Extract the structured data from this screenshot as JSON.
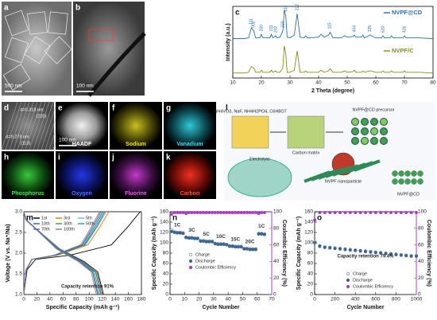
{
  "image_panels": [
    {
      "letter": "a",
      "scale_bar": "500 nm"
    },
    {
      "letter": "b",
      "scale_bar": "100 nm"
    },
    {
      "letter": "d",
      "annotations": [
        "d=0.318 nm",
        "(220)",
        "d=0.273 nm",
        "(113)"
      ]
    },
    {
      "letter": "e",
      "label": "HAADF",
      "scale_bar": "100 nm"
    },
    {
      "letter": "f",
      "label": "Sodium"
    },
    {
      "letter": "g",
      "label": "Vanadium"
    },
    {
      "letter": "h",
      "label": "Phosphorus"
    },
    {
      "letter": "i",
      "label": "Oxygen"
    },
    {
      "letter": "j",
      "label": "Fluorine"
    },
    {
      "letter": "k",
      "label": "Carbon"
    },
    {
      "letter": "l",
      "annotations": [
        "NH4VO3, NaF, NH4H2PO4, C6H8O7",
        "Carbon matrix",
        "NVPF@CD precursor",
        "Electrolyte",
        "NVPF nanoparticle",
        "NVPF@CD"
      ]
    }
  ],
  "chart_data": [
    {
      "type": "line",
      "letter": "c",
      "xlabel": "2 Theta (degree)",
      "ylabel": "Intensity (a.u.)",
      "xlim": [
        10,
        80
      ],
      "xticks": [
        10,
        20,
        30,
        40,
        50,
        60,
        70,
        80
      ],
      "ylim": [
        0,
        100
      ],
      "legend": "right",
      "x": [
        10,
        14,
        15.5,
        16.5,
        17.3,
        18,
        19.5,
        20,
        20.5,
        23,
        23.5,
        24,
        25,
        25.5,
        26.5,
        27.5,
        28,
        28.5,
        29,
        30,
        31.5,
        32.5,
        33.5,
        35,
        35.5,
        36,
        40,
        40.8,
        42,
        43.5,
        44,
        45,
        48,
        49,
        50,
        52,
        52.5,
        53,
        55,
        55.5,
        56,
        58,
        60,
        62,
        62.5,
        63,
        65,
        65.5,
        66,
        69.5,
        70,
        70.5,
        75,
        80
      ],
      "series": [
        {
          "name": "NVPF@CD",
          "color": "#2a6fa8",
          "values": [
            55,
            55,
            56,
            70,
            66,
            56,
            56,
            61,
            56,
            56,
            61,
            56,
            59,
            56,
            57,
            66,
            95,
            88,
            57,
            56,
            60,
            90,
            57,
            56,
            59,
            56,
            57,
            61,
            57,
            60,
            64,
            56,
            56,
            59,
            57,
            58,
            60,
            57,
            57,
            60,
            56,
            60,
            56,
            56,
            59,
            56,
            56,
            59,
            56,
            56,
            59,
            56,
            56,
            55
          ]
        },
        {
          "name": "NVPF/C",
          "color": "#8a8a1a",
          "values": [
            7,
            7,
            8,
            16,
            14,
            8,
            8,
            11,
            8,
            8,
            11,
            8,
            10,
            8,
            8,
            14,
            45,
            34,
            8,
            8,
            11,
            38,
            8,
            8,
            10,
            8,
            8,
            11,
            8,
            10,
            13,
            8,
            8,
            10,
            8,
            9,
            11,
            8,
            8,
            10,
            8,
            10,
            8,
            8,
            10,
            8,
            8,
            10,
            8,
            8,
            10,
            8,
            8,
            7
          ]
        }
      ],
      "peak_labels": [
        {
          "x": 16.5,
          "label": "111"
        },
        {
          "x": 17.3,
          "label": "002"
        },
        {
          "x": 20,
          "label": "200"
        },
        {
          "x": 23.5,
          "label": "211"
        },
        {
          "x": 25,
          "label": "202"
        },
        {
          "x": 27.5,
          "label": "220"
        },
        {
          "x": 28.5,
          "label": "113"
        },
        {
          "x": 32.5,
          "label": "222"
        },
        {
          "x": 44,
          "label": "115"
        },
        {
          "x": 52.5,
          "label": "404"
        },
        {
          "x": 58,
          "label": "335"
        },
        {
          "x": 62.5,
          "label": "620"
        },
        {
          "x": 70,
          "label": "426"
        }
      ]
    },
    {
      "type": "line",
      "letter": "m",
      "xlabel": "Specific Capacity (mAh g⁻¹)",
      "ylabel": "Voltage (V vs. Na⁺/Na)",
      "xlim": [
        0,
        180
      ],
      "xticks": [
        0,
        20,
        40,
        60,
        80,
        100,
        120,
        140,
        160,
        180
      ],
      "ylim": [
        1,
        3
      ],
      "yticks": [
        {
          "value": 1,
          "label": "1.0"
        },
        1.5,
        {
          "value": 2,
          "label": "2.0"
        },
        2.5,
        {
          "value": 3,
          "label": "3.0"
        }
      ],
      "legend": "upper left",
      "annotation": "Capacity retention 91%",
      "series": [
        {
          "name": "1st",
          "color": "#000000",
          "x": [
            0,
            5,
            18,
            71,
            134,
            160,
            178,
            null,
            0,
            4,
            18,
            55,
            92,
            113,
            122
          ],
          "values": [
            1.0,
            1.6,
            1.85,
            1.95,
            2.2,
            2.65,
            3.0,
            null,
            3.0,
            2.8,
            2.6,
            2.1,
            1.8,
            1.55,
            1.0
          ]
        },
        {
          "name": "3rd",
          "color": "#e07b00",
          "x": [
            0,
            4,
            13,
            52,
            98,
            117,
            130,
            null,
            0,
            4,
            18,
            54,
            90,
            112,
            120
          ],
          "values": [
            1.0,
            1.6,
            1.85,
            1.95,
            2.2,
            2.65,
            3.0,
            null,
            3.0,
            2.8,
            2.6,
            2.1,
            1.8,
            1.55,
            1.0
          ]
        },
        {
          "name": "5th",
          "color": "#6fb7e0",
          "x": [
            0,
            4,
            13,
            50,
            95,
            113,
            126,
            null,
            0,
            4,
            18,
            54,
            89,
            111,
            119
          ],
          "values": [
            1.0,
            1.6,
            1.85,
            1.95,
            2.2,
            2.65,
            3.0,
            null,
            3.0,
            2.8,
            2.6,
            2.1,
            1.8,
            1.55,
            1.0
          ]
        },
        {
          "name": "10th",
          "color": "#2f5fbf",
          "x": [
            0,
            4,
            12,
            50,
            93,
            112,
            124,
            null,
            0,
            4,
            18,
            53,
            89,
            110,
            118
          ],
          "values": [
            1.0,
            1.6,
            1.85,
            1.95,
            2.2,
            2.65,
            3.0,
            null,
            3.0,
            2.8,
            2.6,
            2.1,
            1.8,
            1.55,
            1.0
          ]
        },
        {
          "name": "30th",
          "color": "#2e9e3e",
          "x": [
            0,
            4,
            12,
            49,
            92,
            110,
            122,
            null,
            0,
            3,
            17,
            52,
            87,
            108,
            116
          ],
          "values": [
            1.0,
            1.6,
            1.85,
            1.95,
            2.2,
            2.65,
            3.0,
            null,
            3.0,
            2.8,
            2.6,
            2.1,
            1.8,
            1.55,
            1.0
          ]
        },
        {
          "name": "50th",
          "color": "#1a9a9a",
          "x": [
            0,
            4,
            12,
            48,
            90,
            108,
            120,
            null,
            0,
            3,
            17,
            51,
            86,
            106,
            114
          ],
          "values": [
            1.0,
            1.6,
            1.85,
            1.95,
            2.2,
            2.65,
            3.0,
            null,
            3.0,
            2.8,
            2.6,
            2.1,
            1.8,
            1.55,
            1.0
          ]
        },
        {
          "name": "70th",
          "color": "#7a4fbf",
          "x": [
            0,
            4,
            12,
            47,
            89,
            106,
            118,
            null,
            0,
            3,
            17,
            51,
            85,
            105,
            113
          ],
          "values": [
            1.0,
            1.6,
            1.85,
            1.95,
            2.2,
            2.65,
            3.0,
            null,
            3.0,
            2.8,
            2.6,
            2.1,
            1.8,
            1.55,
            1.0
          ]
        },
        {
          "name": "100th",
          "color": "#808080",
          "x": [
            0,
            3,
            12,
            46,
            87,
            104,
            116,
            null,
            0,
            3,
            17,
            50,
            83,
            103,
            111
          ],
          "values": [
            1.0,
            1.6,
            1.85,
            1.95,
            2.2,
            2.65,
            3.0,
            null,
            3.0,
            2.8,
            2.6,
            2.1,
            1.8,
            1.55,
            1.0
          ]
        }
      ]
    },
    {
      "type": "scatter",
      "letter": "n",
      "xlabel": "Cycle Number",
      "ylabel": "Specific Capacity (mAh g⁻¹)",
      "y2label": "Coulombic Efficiency (%)",
      "xlim": [
        0,
        70
      ],
      "xticks": [
        0,
        10,
        20,
        30,
        40,
        50,
        60,
        70
      ],
      "ylim": [
        0,
        160
      ],
      "yticks": [
        0,
        20,
        40,
        60,
        80,
        100,
        120,
        140,
        160
      ],
      "y2lim": [
        0,
        100
      ],
      "y2ticks": [
        0,
        20,
        40,
        60,
        80,
        100
      ],
      "y2color": "#a63fc9",
      "legend": "center left",
      "rate_labels": [
        "1C",
        "3C",
        "5C",
        "10C",
        "15C",
        "20C",
        "1C"
      ],
      "x": [
        1,
        3,
        5,
        7,
        9,
        11,
        13,
        15,
        17,
        19,
        21,
        23,
        25,
        27,
        29,
        31,
        33,
        35,
        37,
        39,
        41,
        43,
        45,
        47,
        49,
        51,
        53,
        55,
        57,
        59,
        61,
        63,
        65
      ],
      "series": [
        {
          "name": "Charge",
          "color": "#4a7aa8",
          "marker": "open-circle",
          "values": [
            125,
            121,
            120,
            120,
            119,
            111,
            110,
            110,
            109,
            109,
            104,
            104,
            103,
            103,
            103,
            99,
            98,
            98,
            98,
            97,
            94,
            94,
            93,
            93,
            93,
            89,
            89,
            88,
            88,
            88,
            118,
            118,
            117
          ]
        },
        {
          "name": "Discharge",
          "color": "#3e6590",
          "marker": "circle",
          "values": [
            122,
            120,
            119,
            119,
            118,
            110,
            109,
            109,
            108,
            108,
            103,
            103,
            102,
            102,
            102,
            98,
            97,
            97,
            97,
            96,
            93,
            93,
            92,
            92,
            92,
            88,
            88,
            87,
            87,
            87,
            117,
            117,
            116
          ]
        },
        {
          "name": "Coulombic Efficiency",
          "color": "#a63fc9",
          "marker": "circle",
          "axis": "y2",
          "values": [
            97,
            99,
            99,
            99,
            99,
            98,
            99,
            99,
            99,
            99,
            99,
            99,
            99,
            99,
            99,
            99,
            99,
            99,
            99,
            99,
            99,
            99,
            99,
            99,
            99,
            99,
            99,
            99,
            99,
            99,
            98,
            99,
            99
          ]
        }
      ]
    },
    {
      "type": "scatter",
      "letter": "o",
      "xlabel": "Cycle Number",
      "ylabel": "Specific Capacity (mAh g⁻¹)",
      "y2label": "Coulombic Efficiency (%)",
      "xlim": [
        0,
        1000
      ],
      "xticks": [
        0,
        200,
        400,
        600,
        800,
        1000
      ],
      "ylim": [
        0,
        160
      ],
      "yticks": [
        0,
        20,
        40,
        60,
        80,
        100,
        120,
        140,
        160
      ],
      "y2lim": [
        0,
        100
      ],
      "y2ticks": [
        0,
        20,
        40,
        60,
        80,
        100
      ],
      "y2color": "#a63fc9",
      "legend": "lower center",
      "annotation": "Capacity retention 79.4%",
      "x": [
        1,
        50,
        100,
        150,
        200,
        250,
        300,
        350,
        400,
        450,
        500,
        550,
        600,
        650,
        700,
        750,
        800,
        850,
        900,
        950,
        1000
      ],
      "series": [
        {
          "name": "Charge",
          "color": "#4a7aa8",
          "marker": "open-circle",
          "values": [
            102,
            94,
            92,
            91,
            90,
            89,
            88,
            87,
            86,
            85,
            84,
            83,
            82,
            81,
            80,
            79,
            78,
            77,
            76,
            75,
            75
          ]
        },
        {
          "name": "Discharge",
          "color": "#3e6590",
          "marker": "circle",
          "values": [
            100,
            93,
            91,
            90,
            89,
            88,
            87,
            86,
            85,
            84,
            83,
            82,
            81,
            80,
            79,
            78,
            77,
            76,
            75,
            74,
            74
          ]
        },
        {
          "name": "Coulombic Efficiency",
          "color": "#a63fc9",
          "marker": "circle",
          "axis": "y2",
          "values": [
            90,
            99,
            99,
            99,
            99,
            99,
            99,
            99,
            99,
            99,
            99,
            99,
            99,
            99,
            99,
            99,
            99,
            99,
            99,
            99,
            99
          ]
        }
      ]
    }
  ]
}
